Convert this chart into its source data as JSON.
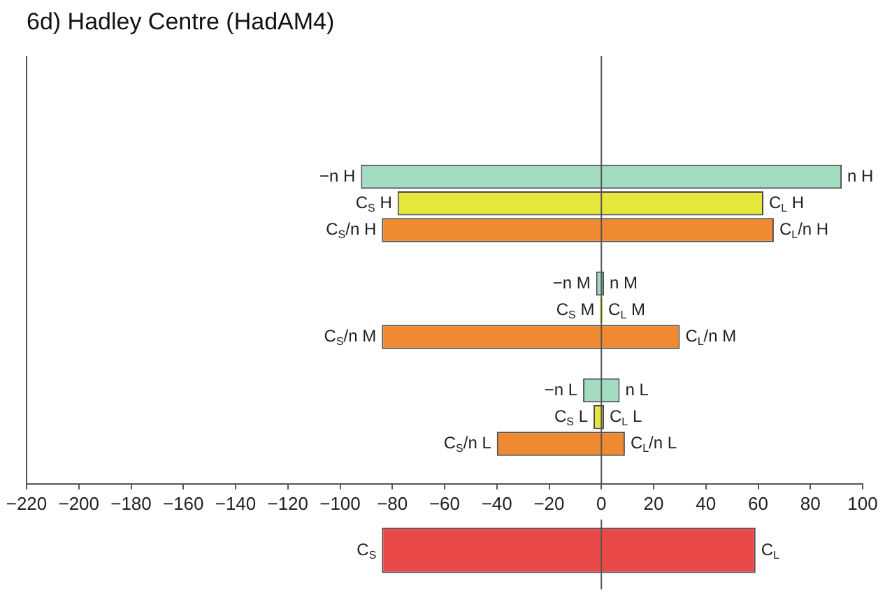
{
  "chart_data": [
    {
      "type": "bar",
      "title": "6d) Hadley Centre (HadAM4)",
      "orientation": "horizontal",
      "categories": [
        null,
        null,
        null,
        null,
        null,
        null,
        null,
        null,
        null,
        null,
        null,
        null,
        null,
        null,
        null,
        null
      ],
      "series": [
        {
          "values": [
            null,
            null,
            null,
            null,
            184,
            140,
            150,
            null,
            3,
            1,
            114,
            null,
            14,
            4,
            49,
            null
          ],
          "base": [
            null,
            null,
            null,
            null,
            -92,
            -78,
            -84,
            null,
            -2,
            -0.5,
            -84,
            null,
            -7,
            -3,
            -40,
            null
          ],
          "colors": [
            null,
            null,
            null,
            null,
            "#a3dcc0",
            "#e6e63c",
            "#f08a30",
            null,
            "#a3dcc0",
            "#e6e63c",
            "#f08a30",
            null,
            "#a3dcc0",
            "#e6e63c",
            "#f08a30",
            null
          ]
        }
      ],
      "xlim": [
        -220,
        100
      ],
      "xticks": [
        -220,
        -200,
        -180,
        -160,
        -140,
        -120,
        -100,
        -80,
        -60,
        -40,
        -20,
        0,
        20,
        40,
        60,
        80,
        100
      ],
      "ref_lines": [
        {
          "axis": "x",
          "value": 0,
          "color": "#555555"
        }
      ],
      "annotations": [
        {
          "text": "−n H",
          "x": -92
        },
        {
          "text": "n H",
          "x": 92
        },
        {
          "text": "C$_{S}$ H",
          "x": -78
        },
        {
          "text": "C$_{L}$ H",
          "x": 62
        },
        {
          "text": "C$_{S}$/n H",
          "x": -84
        },
        {
          "text": "C$_{L}$/n H",
          "x": 66
        },
        {
          "text": "−n M",
          "x": -2
        },
        {
          "text": "n M",
          "x": 1
        },
        {
          "text": "C$_{S}$ M",
          "x": -0.5
        },
        {
          "text": "C$_{L}$ M",
          "x": 0.5
        },
        {
          "text": "C$_{S}$/n M",
          "x": -84
        },
        {
          "text": "C$_{L}$/n M",
          "x": 30
        },
        {
          "text": "−n L",
          "x": -7
        },
        {
          "text": "n L",
          "x": 7
        },
        {
          "text": "C$_{S}$ L",
          "x": -3
        },
        {
          "text": "C$_{L}$ L",
          "x": 1
        },
        {
          "text": "C$_{S}$/n L",
          "x": -40
        },
        {
          "text": "C$_{L}$/n L",
          "x": 9
        }
      ],
      "grid": false,
      "legend": false
    },
    {
      "type": "bar",
      "orientation": "horizontal",
      "categories": [
        null
      ],
      "series": [
        {
          "values": [
            143
          ],
          "base": [
            -84
          ],
          "colors": [
            "#e94a48"
          ]
        }
      ],
      "xlim": [
        -220,
        100
      ],
      "xticks": [
        -220,
        -200,
        -180,
        -160,
        -140,
        -120,
        -100,
        -80,
        -60,
        -40,
        -20,
        0,
        20,
        40,
        60,
        80,
        100
      ],
      "tick_labels": false,
      "ref_lines": [
        {
          "axis": "x",
          "value": 0,
          "color": "#555555"
        }
      ],
      "annotations": [
        {
          "text": "C$_{S}$",
          "x": -84
        },
        {
          "text": "C$_{L}$",
          "x": 59
        }
      ],
      "grid": false,
      "legend": false
    }
  ]
}
